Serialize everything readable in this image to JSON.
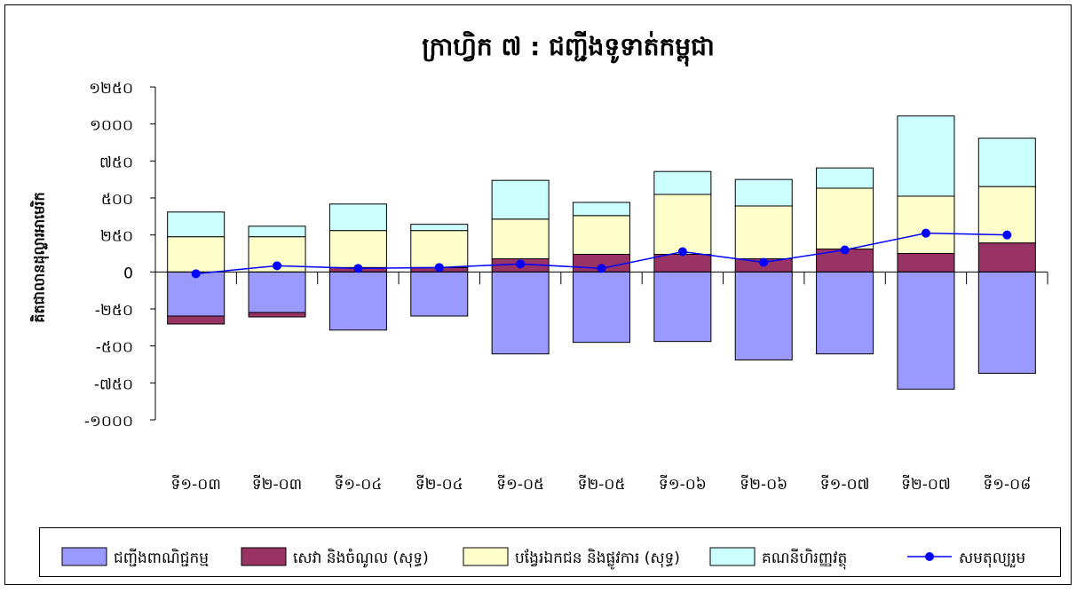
{
  "chart_data": {
    "type": "bar",
    "stacked": true,
    "title": "ក្រាហ្វិក ៧ : ជញ្ជីងទូទាត់កម្ពុជា",
    "y_label": "គិតជាលានដុល្លារអាមេរិក",
    "categories": [
      "ទី១-០៣",
      "ទី២-០៣",
      "ទី១-០៤",
      "ទី២-០៤",
      "ទី១-០៥",
      "ទី២-០៥",
      "ទី១-០៦",
      "ទី២-០៦",
      "ទី១-០៧",
      "ទី២-០៧",
      "ទី១-០៨"
    ],
    "series": [
      {
        "name": "ជញ្ជីងពាណិជ្ជកម្ម",
        "color": "#9999ff",
        "values": [
          -298,
          -274,
          -393,
          -298,
          -554,
          -476,
          -470,
          -595,
          -554,
          -792,
          -685
        ]
      },
      {
        "name": "សេវា និងចំណូល (សុទ្ធ)",
        "color": "#993366",
        "values": [
          -54,
          -30,
          30,
          30,
          89,
          119,
          119,
          89,
          155,
          125,
          196
        ]
      },
      {
        "name": "បង្វែរឯកជន និងផ្លូវការ (សុទ្ធ)",
        "color": "#ffffcc",
        "values": [
          238,
          238,
          250,
          250,
          268,
          262,
          405,
          357,
          411,
          387,
          381
        ]
      },
      {
        "name": "គណនីហិរញ្ញវត្ថុ",
        "color": "#ccffff",
        "values": [
          167,
          71,
          179,
          42,
          262,
          89,
          155,
          179,
          137,
          542,
          327
        ]
      },
      {
        "name": "សមតុល្យរួម",
        "color": "#0000ff",
        "type": "line",
        "values": [
          -12,
          42,
          24,
          30,
          54,
          24,
          137,
          65,
          149,
          262,
          250
        ]
      }
    ],
    "ylim": [
      -1000,
      1250
    ],
    "yticks": [
      {
        "value": -1000,
        "label": "-១០០០"
      },
      {
        "value": -750,
        "label": "-៧៥០"
      },
      {
        "value": -500,
        "label": "-៥០០"
      },
      {
        "value": -250,
        "label": "-២៥០"
      },
      0,
      {
        "value": 250,
        "label": "២៥០"
      },
      {
        "value": 500,
        "label": "៥០០"
      },
      {
        "value": 750,
        "label": "៧៥០"
      },
      {
        "value": 1000,
        "label": "១០០០"
      },
      {
        "value": 1250,
        "label": "១២៥០"
      }
    ],
    "legend": "bottom"
  }
}
